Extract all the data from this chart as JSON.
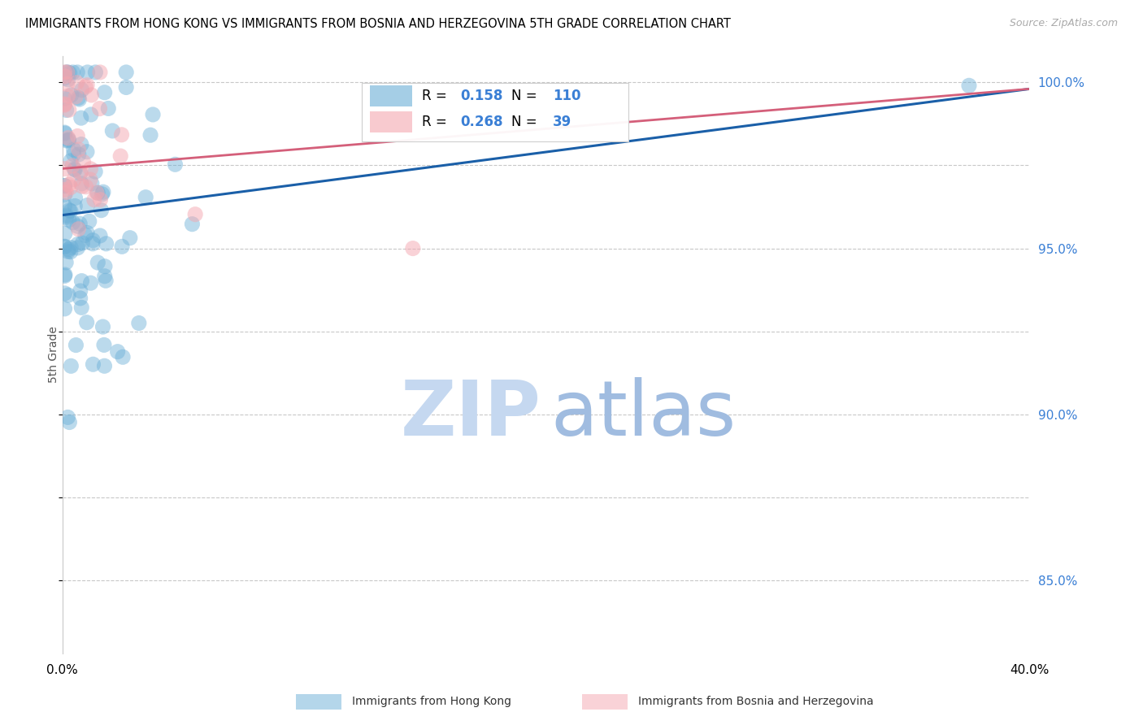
{
  "title": "IMMIGRANTS FROM HONG KONG VS IMMIGRANTS FROM BOSNIA AND HERZEGOVINA 5TH GRADE CORRELATION CHART",
  "source_text": "Source: ZipAtlas.com",
  "ylabel": "5th Grade",
  "x_min": 0.0,
  "x_max": 0.4,
  "y_min": 0.828,
  "y_max": 1.008,
  "x_ticks": [
    0.0,
    0.05,
    0.1,
    0.15,
    0.2,
    0.25,
    0.3,
    0.35,
    0.4
  ],
  "x_tick_labels": [
    "0.0%",
    "",
    "",
    "",
    "",
    "",
    "",
    "",
    "40.0%"
  ],
  "y_ticks": [
    0.85,
    0.9,
    0.95,
    1.0
  ],
  "y_tick_labels": [
    "85.0%",
    "90.0%",
    "95.0%",
    "100.0%"
  ],
  "legend_labels": [
    "Immigrants from Hong Kong",
    "Immigrants from Bosnia and Herzegovina"
  ],
  "legend_R": [
    0.158,
    0.268
  ],
  "legend_N": [
    110,
    39
  ],
  "blue_color": "#6aaed6",
  "pink_color": "#f4a7b0",
  "trend_blue": "#1a5fa8",
  "trend_pink": "#d45f7a",
  "watermark_zip": "#c5d8f0",
  "watermark_atlas": "#a0bce0",
  "background_color": "#FFFFFF",
  "title_fontsize": 10.5,
  "source_fontsize": 9
}
